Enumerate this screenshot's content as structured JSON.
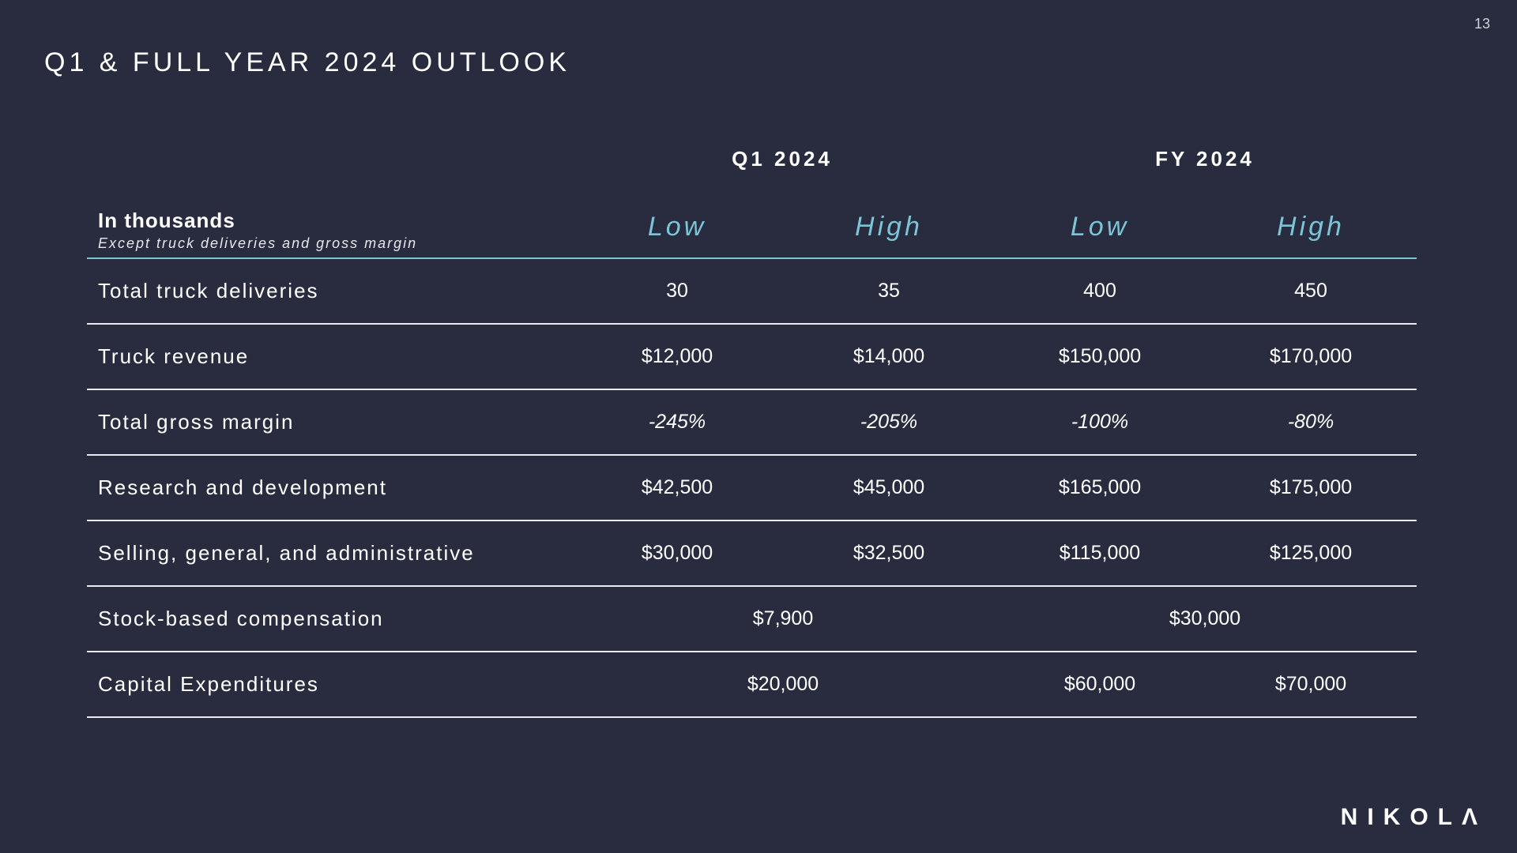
{
  "page_number": "13",
  "title": "Q1 & FULL YEAR 2024 OUTLOOK",
  "groups": {
    "q1": "Q1 2024",
    "fy": "FY 2024"
  },
  "table": {
    "units_label": "In thousands",
    "units_note": "Except truck deliveries and gross margin",
    "columns": [
      "Low",
      "High",
      "Low",
      "High"
    ],
    "rows": [
      {
        "label": "Total truck deliveries",
        "values": [
          "30",
          "35",
          "400",
          "450"
        ]
      },
      {
        "label": "Truck revenue",
        "values": [
          "$12,000",
          "$14,000",
          "$150,000",
          "$170,000"
        ]
      },
      {
        "label": "Total gross margin",
        "values": [
          "-245%",
          "-205%",
          "-100%",
          "-80%"
        ]
      },
      {
        "label": "Research and development",
        "values": [
          "$42,500",
          "$45,000",
          "$165,000",
          "$175,000"
        ]
      },
      {
        "label": "Selling, general, and administrative",
        "values": [
          "$30,000",
          "$32,500",
          "$115,000",
          "$125,000"
        ]
      },
      {
        "label": "Stock-based compensation",
        "q1_value": "$7,900",
        "fy_value": "$30,000"
      },
      {
        "label": "Capital Expenditures",
        "q1_value": "$20,000",
        "values": [
          "$60,000",
          "$70,000"
        ]
      }
    ]
  },
  "logo_text": "NIKOLΛ"
}
